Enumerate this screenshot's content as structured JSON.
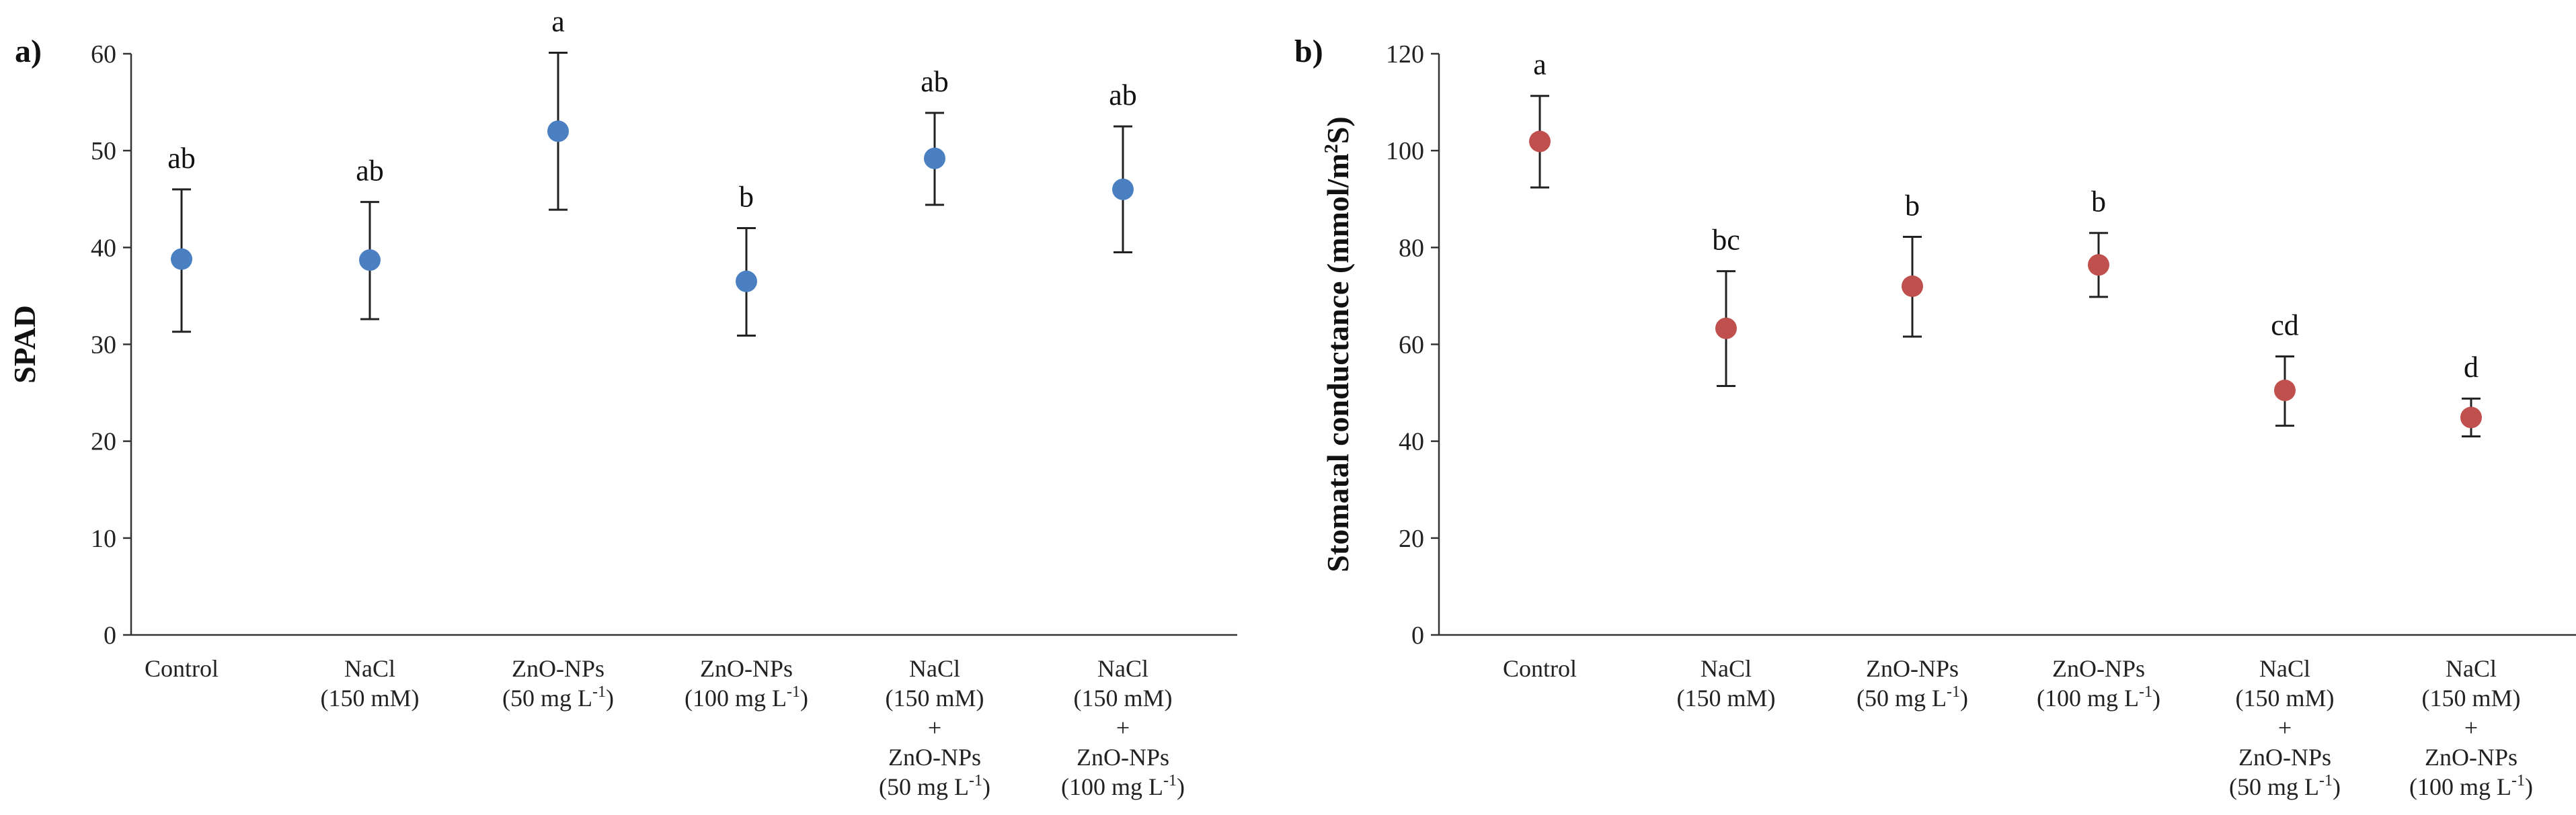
{
  "chart_data": [
    {
      "type": "scatter",
      "panel_label": "a)",
      "ylabel": "SPAD",
      "ylim": [
        0,
        60
      ],
      "yticks": [
        0,
        10,
        20,
        30,
        40,
        50,
        60
      ],
      "marker_color": "#4a7fc1",
      "categories": [
        {
          "lines": [
            {
              "t": "Control"
            }
          ]
        },
        {
          "lines": [
            {
              "t": "NaCl"
            },
            {
              "t": "(150 mM)"
            }
          ]
        },
        {
          "lines": [
            {
              "t": "ZnO-NPs"
            },
            {
              "t": "(50 mg L",
              "sup": "-1",
              "after": ")"
            }
          ]
        },
        {
          "lines": [
            {
              "t": "ZnO-NPs"
            },
            {
              "t": "(100 mg L",
              "sup": "-1",
              "after": ")"
            }
          ]
        },
        {
          "lines": [
            {
              "t": "NaCl"
            },
            {
              "t": "(150 mM)"
            },
            {
              "t": "+"
            },
            {
              "t": "ZnO-NPs"
            },
            {
              "t": "(50 mg L",
              "sup": "-1",
              "after": ")"
            }
          ]
        },
        {
          "lines": [
            {
              "t": "NaCl"
            },
            {
              "t": "(150 mM)"
            },
            {
              "t": "+"
            },
            {
              "t": "ZnO-NPs"
            },
            {
              "t": "(100 mg L",
              "sup": "-1",
              "after": ")"
            }
          ]
        }
      ],
      "values": [
        38.8,
        38.7,
        52.0,
        36.5,
        49.2,
        46.0
      ],
      "err_low": [
        31.3,
        32.6,
        43.9,
        30.9,
        44.4,
        39.5
      ],
      "err_high": [
        46.0,
        44.7,
        60.1,
        42.0,
        53.9,
        52.5
      ],
      "letters": [
        "ab",
        "ab",
        "a",
        "b",
        "ab",
        "ab"
      ]
    },
    {
      "type": "scatter",
      "panel_label": "b)",
      "ylabel": "Stomatal conductance (mmol/m",
      "ylabel_sup": "2",
      "ylabel_after": "S)",
      "ylim": [
        0,
        120
      ],
      "yticks": [
        0,
        20,
        40,
        60,
        80,
        100,
        120
      ],
      "marker_color": "#c0504d",
      "categories": [
        {
          "lines": [
            {
              "t": "Control"
            }
          ]
        },
        {
          "lines": [
            {
              "t": "NaCl"
            },
            {
              "t": "(150 mM)"
            }
          ]
        },
        {
          "lines": [
            {
              "t": "ZnO-NPs"
            },
            {
              "t": "(50 mg L",
              "sup": "-1",
              "after": ")"
            }
          ]
        },
        {
          "lines": [
            {
              "t": "ZnO-NPs"
            },
            {
              "t": "(100 mg L",
              "sup": "-1",
              "after": ")"
            }
          ]
        },
        {
          "lines": [
            {
              "t": "NaCl"
            },
            {
              "t": "(150 mM)"
            },
            {
              "t": "+"
            },
            {
              "t": "ZnO-NPs"
            },
            {
              "t": "(50 mg L",
              "sup": "-1",
              "after": ")"
            }
          ]
        },
        {
          "lines": [
            {
              "t": "NaCl"
            },
            {
              "t": "(150 mM)"
            },
            {
              "t": "+"
            },
            {
              "t": "ZnO-NPs"
            },
            {
              "t": "(100 mg L",
              "sup": "-1",
              "after": ")"
            }
          ]
        }
      ],
      "values": [
        101.9,
        63.3,
        72.0,
        76.4,
        50.5,
        44.9
      ],
      "err_low": [
        92.4,
        51.4,
        61.6,
        69.8,
        43.2,
        41.0
      ],
      "err_high": [
        111.3,
        75.1,
        82.2,
        83.0,
        57.5,
        48.8
      ],
      "letters": [
        "a",
        "bc",
        "b",
        "b",
        "cd",
        "d"
      ]
    }
  ]
}
